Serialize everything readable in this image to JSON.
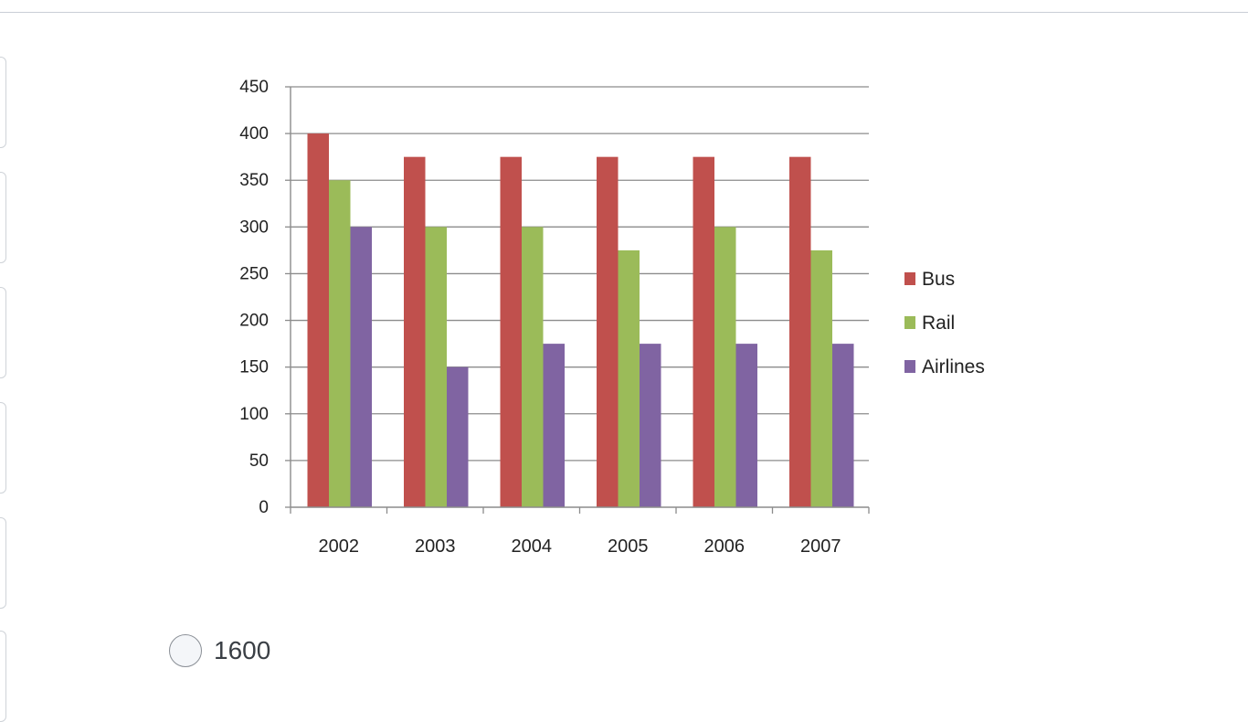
{
  "chart_data": {
    "type": "bar",
    "categories": [
      "2002",
      "2003",
      "2004",
      "2005",
      "2006",
      "2007"
    ],
    "series": [
      {
        "name": "Bus",
        "color": "#c0504d",
        "values": [
          400,
          375,
          375,
          375,
          375,
          375
        ]
      },
      {
        "name": "Rail",
        "color": "#9bbb59",
        "values": [
          350,
          300,
          300,
          275,
          300,
          275
        ]
      },
      {
        "name": "Airlines",
        "color": "#8064a2",
        "values": [
          300,
          150,
          175,
          175,
          175,
          175
        ]
      }
    ],
    "ylim": [
      0,
      450
    ],
    "yticks": [
      0,
      50,
      100,
      150,
      200,
      250,
      300,
      350,
      400,
      450
    ],
    "grid": true,
    "legend_position": "right"
  },
  "answer_option": {
    "label": "1600"
  }
}
